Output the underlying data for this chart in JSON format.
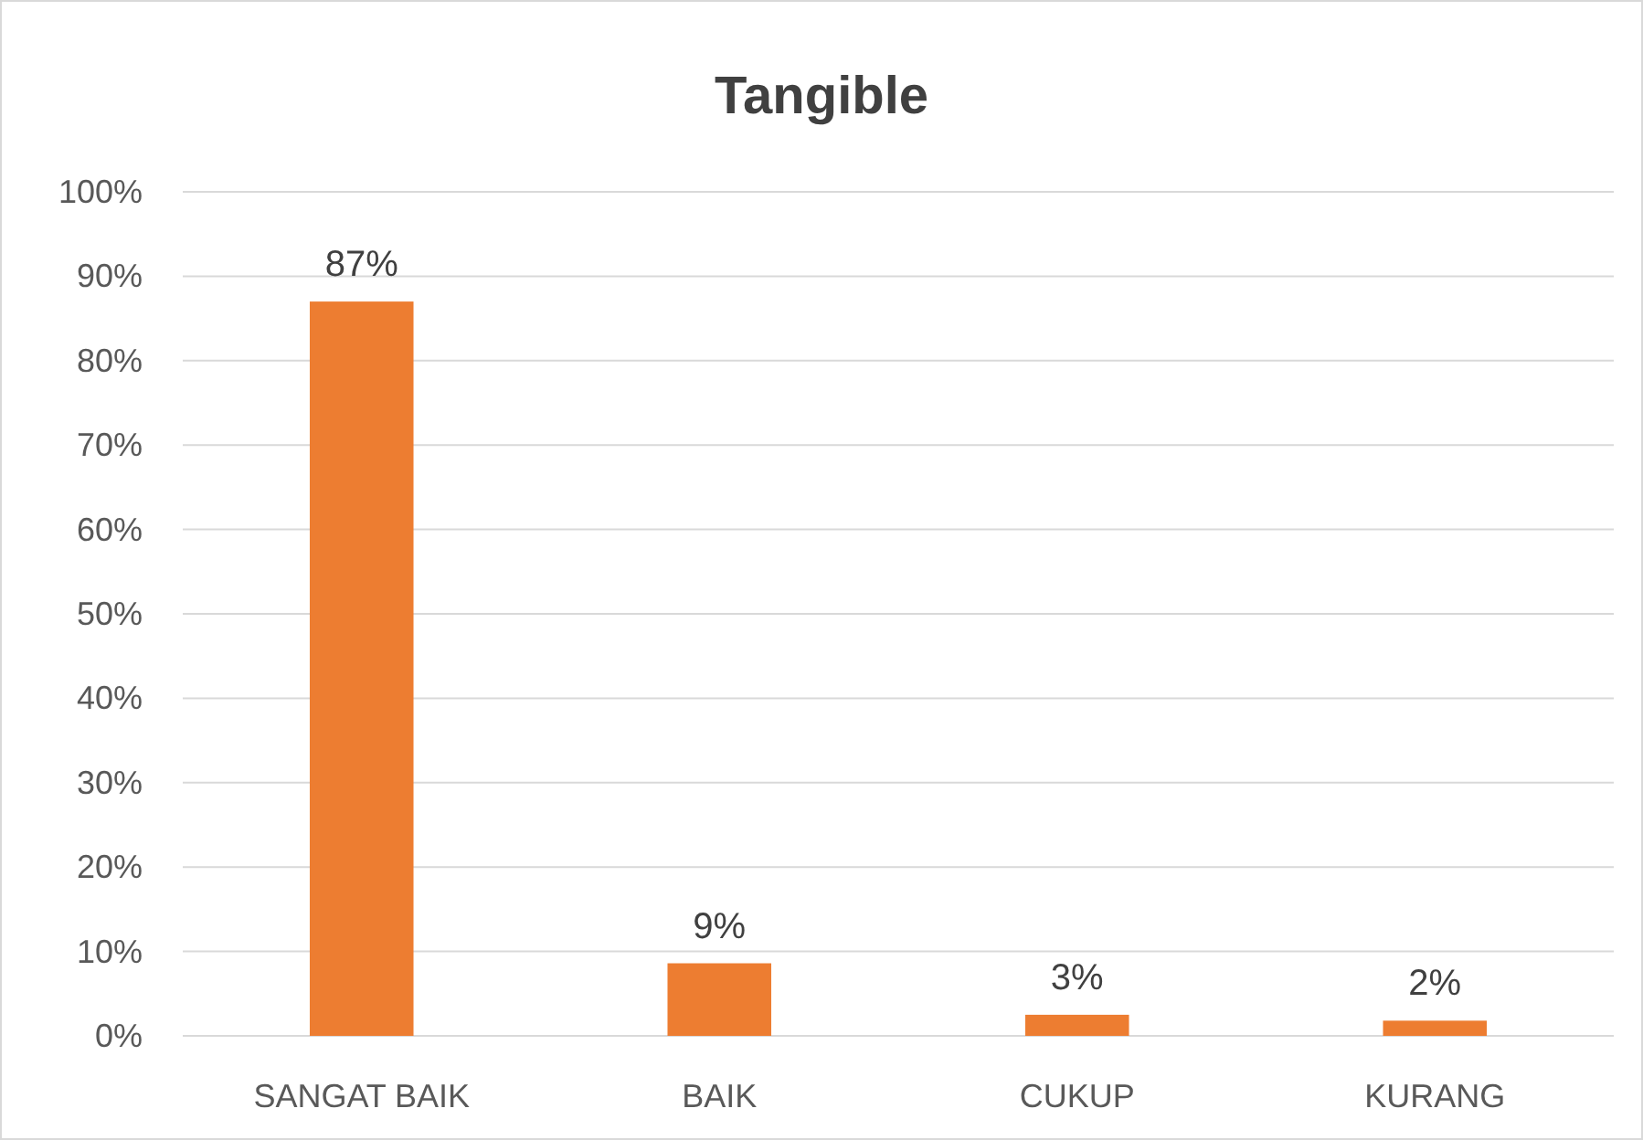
{
  "chart_data": {
    "type": "bar",
    "title": "Tangible",
    "categories": [
      "SANGAT BAIK",
      "BAIK",
      "CUKUP",
      "KURANG"
    ],
    "values": [
      87,
      8.6,
      2.5,
      1.8
    ],
    "value_labels": [
      "87%",
      "9%",
      "3%",
      "2%"
    ],
    "color": "#ed7d31",
    "ylim": [
      0,
      100
    ],
    "yticks": [
      {
        "value": 0,
        "label": "0%"
      },
      {
        "value": 10,
        "label": "10%"
      },
      {
        "value": 20,
        "label": "20%"
      },
      {
        "value": 30,
        "label": "30%"
      },
      {
        "value": 40,
        "label": "40%"
      },
      {
        "value": 50,
        "label": "50%"
      },
      {
        "value": 60,
        "label": "60%"
      },
      {
        "value": 70,
        "label": "70%"
      },
      {
        "value": 80,
        "label": "80%"
      },
      {
        "value": 90,
        "label": "90%"
      },
      {
        "value": 100,
        "label": "100%"
      }
    ],
    "grid": "y"
  }
}
